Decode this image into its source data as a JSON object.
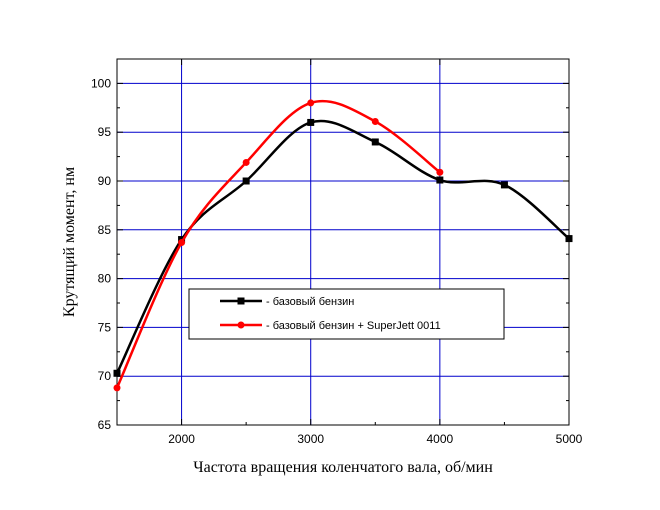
{
  "chart_data": {
    "type": "line",
    "xlabel": "Частота вращения коленчатого вала, об/мин",
    "ylabel": "Крутящий момент, нм",
    "xlim": [
      1500,
      5000
    ],
    "ylim": [
      65,
      102.5
    ],
    "xticks": [
      2000,
      3000,
      4000,
      5000
    ],
    "xtick_labels": [
      "2000",
      "3000",
      "4000",
      "5000"
    ],
    "yticks": [
      65,
      70,
      75,
      80,
      85,
      90,
      95,
      100
    ],
    "ytick_labels": [
      "65",
      "70",
      "75",
      "80",
      "85",
      "90",
      "95",
      "100"
    ],
    "grid": true,
    "grid_color": "#0000cc",
    "legend_placement": "center",
    "series": [
      {
        "name": "- базовый бензин",
        "color": "#000000",
        "marker": "square",
        "x": [
          1500,
          2000,
          2500,
          3000,
          3500,
          4000,
          4500,
          5000
        ],
        "y": [
          70.3,
          84.0,
          90.0,
          96.0,
          94.0,
          90.1,
          89.6,
          84.1
        ]
      },
      {
        "name": "- базовый бензин + SuperJett 0011",
        "color": "#ff0000",
        "marker": "circle",
        "x": [
          1500,
          2000,
          2500,
          3000,
          3500,
          4000
        ],
        "y": [
          68.8,
          83.7,
          91.9,
          98.0,
          96.1,
          90.9
        ]
      }
    ]
  }
}
